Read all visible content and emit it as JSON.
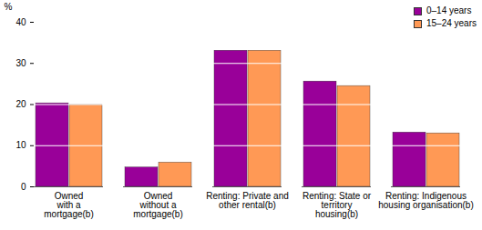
{
  "chart_data": {
    "type": "bar",
    "y_label": "%",
    "categories": [
      "Owned\nwith a\nmortgage(b)",
      "Owned\nwithout a\nmortgage(b)",
      "Renting: Private and\nother rental(b)",
      "Renting: State or\nterritory\nhousing(b)",
      "Renting: Indigenous\nhousing organisation(b)"
    ],
    "series": [
      {
        "name": "0–14 years",
        "color": "#990099",
        "values": [
          20.3,
          4.7,
          33.1,
          25.6,
          13.2
        ]
      },
      {
        "name": "15–24 years",
        "color": "#ff9955",
        "values": [
          19.9,
          5.9,
          33.1,
          24.5,
          13.0
        ]
      }
    ],
    "ylim": [
      0,
      40
    ],
    "yticks": [
      0,
      10,
      20,
      30,
      40
    ],
    "grid": true,
    "legend": "top-right"
  }
}
